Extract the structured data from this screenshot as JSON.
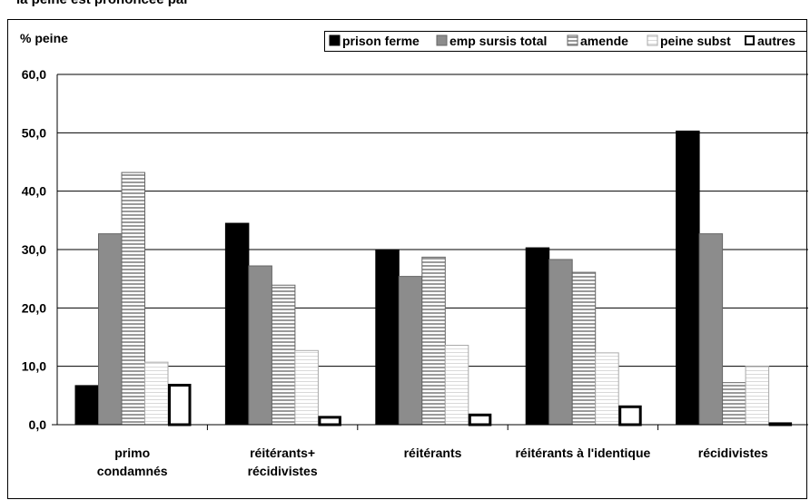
{
  "page": {
    "clipped_heading": "la peine est prononcée par"
  },
  "chart_data": {
    "type": "bar",
    "ylabel": "% peine",
    "ylim": [
      0,
      60
    ],
    "yticks": [
      "0,0",
      "10,0",
      "20,0",
      "30,0",
      "40,0",
      "50,0",
      "60,0"
    ],
    "grid": true,
    "legend_position": "top-right",
    "categories": [
      [
        "primo",
        "condamnés"
      ],
      [
        "réitérants+",
        "récidivistes"
      ],
      [
        "réitérants"
      ],
      [
        "réitérants à l'identique"
      ],
      [
        "récidivistes"
      ]
    ],
    "series": [
      {
        "name": "prison ferme",
        "fill": "black",
        "values": [
          6.7,
          34.5,
          30.0,
          30.3,
          50.3
        ]
      },
      {
        "name": "emp sursis total",
        "fill": "gray",
        "values": [
          32.7,
          27.2,
          25.4,
          28.3,
          32.7
        ]
      },
      {
        "name": "amende",
        "fill": "hstripe",
        "values": [
          43.2,
          23.9,
          28.7,
          26.1,
          7.2
        ]
      },
      {
        "name": "peine subst",
        "fill": "light",
        "values": [
          10.7,
          12.7,
          13.6,
          12.3,
          10.0
        ]
      },
      {
        "name": "autres",
        "fill": "outline",
        "values": [
          7.0,
          1.5,
          1.9,
          3.3,
          0.4
        ]
      }
    ]
  }
}
